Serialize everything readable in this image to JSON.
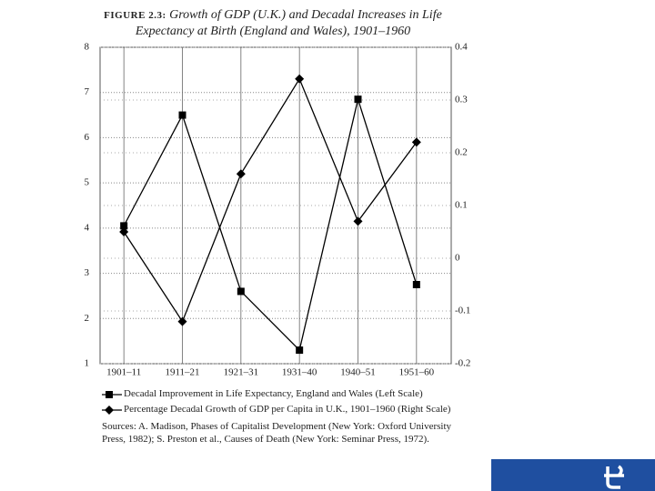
{
  "chart_data": {
    "type": "line",
    "figure_label": "FIGURE 2.3:",
    "title": "Growth of GDP (U.K.) and Decadal Increases in Life Expectancy at Birth (England and Wales), 1901–1960",
    "categories": [
      "1901–11",
      "1911–21",
      "1921–31",
      "1931–40",
      "1940–51",
      "1951–60"
    ],
    "series": [
      {
        "name": "Decadal Improvement in Life Expectancy, England and Wales (Left Scale)",
        "color": "#000000",
        "marker": "square",
        "values": [
          4.05,
          6.5,
          2.6,
          1.3,
          6.85,
          2.75
        ]
      },
      {
        "name": "Percentage Decadal Growth of GDP per Capita in U.K., 1901–1960 (Right Scale)",
        "color": "#000000",
        "marker": "diamond",
        "axis": "y2",
        "values": [
          0.05,
          -0.12,
          0.16,
          0.34,
          0.07,
          0.22
        ]
      }
    ],
    "ylim": [
      1,
      8
    ],
    "yticks": [
      1,
      2,
      3,
      4,
      5,
      6,
      7,
      8
    ],
    "y2lim": [
      -0.2,
      0.4
    ],
    "y2ticks": [
      -0.2,
      -0.1,
      0,
      0.1,
      0.2,
      0.3,
      0.4
    ],
    "grid": true,
    "source": "Sources: A. Madison, Phases of Capitalist Development (New York: Oxford University Press, 1982); S. Preston et al., Causes of Death (New York: Seminar Press, 1972)."
  }
}
